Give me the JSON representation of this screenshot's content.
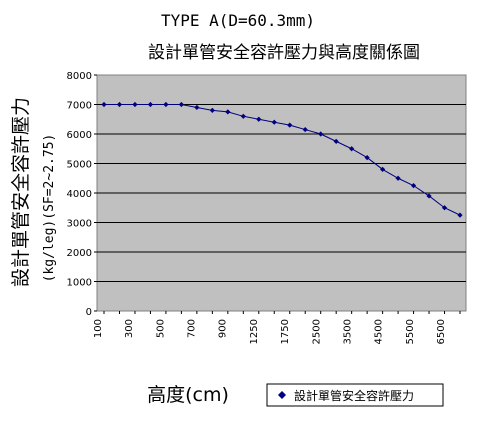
{
  "chart_data": {
    "type": "line",
    "title": "TYPE A(D=60.3mm)",
    "subtitle": "設計單管安全容許壓力與高度關係圖",
    "xlabel": "高度(cm)",
    "ylabel": "設計單管安全容許壓力",
    "ylabel_sub": "(kg/leg)(SF=2~2.75)",
    "ylim": [
      0,
      8000
    ],
    "yticks": [
      "0",
      "1000",
      "2000",
      "3000",
      "4000",
      "5000",
      "6000",
      "7000",
      "8000"
    ],
    "x_tick_labels": [
      "100",
      "300",
      "500",
      "700",
      "900",
      "1250",
      "1750",
      "2500",
      "3500",
      "4500",
      "5500",
      "6500"
    ],
    "grid": "horizontal",
    "legend_position": "bottom-right",
    "colors": {
      "plot_bg": "#c0c0c0",
      "series": "#000080",
      "grid": "#000000"
    },
    "series": [
      {
        "name": "設計單管安全容許壓力",
        "x_positions": [
          0,
          1,
          2,
          3,
          4,
          5,
          6,
          7,
          8,
          9,
          10,
          11,
          12,
          13,
          14,
          15,
          16,
          17,
          18,
          19,
          20,
          21,
          22,
          23
        ],
        "values": [
          7000,
          7000,
          7000,
          7000,
          7000,
          7000,
          6900,
          6800,
          6750,
          6600,
          6500,
          6400,
          6300,
          6150,
          6000,
          5750,
          5500,
          5200,
          4800,
          4500,
          4250,
          3900,
          3500,
          3250
        ]
      }
    ]
  }
}
